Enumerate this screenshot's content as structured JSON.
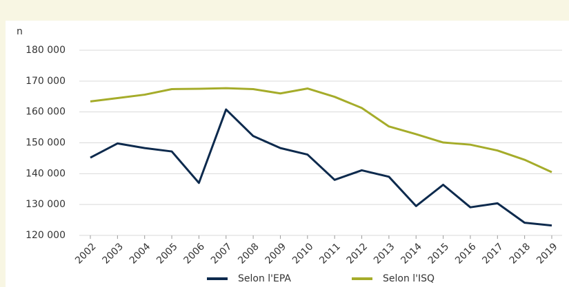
{
  "chart_data": {
    "type": "line",
    "ylabel": "n",
    "categories": [
      "2002",
      "2003",
      "2004",
      "2005",
      "2006",
      "2007",
      "2008",
      "2009",
      "2010",
      "2011",
      "2012",
      "2013",
      "2014",
      "2015",
      "2016",
      "2017",
      "2018",
      "2019"
    ],
    "series": [
      {
        "name": "Selon l'EPA",
        "color": "#0d2a4d",
        "values": [
          145200,
          149800,
          148300,
          147200,
          137000,
          160800,
          152200,
          148300,
          146200,
          138000,
          141100,
          139000,
          129500,
          136400,
          129100,
          130400,
          124100,
          123200
        ]
      },
      {
        "name": "Selon l'ISQ",
        "color": "#a5ac2a",
        "values": [
          163400,
          164500,
          165600,
          167400,
          167500,
          167700,
          167400,
          166000,
          167600,
          164900,
          161300,
          155300,
          152800,
          150100,
          149400,
          147500,
          144500,
          140500
        ]
      }
    ],
    "ylim": [
      120000,
      180000
    ],
    "yticks": [
      {
        "value": 120000,
        "label": "120 000"
      },
      {
        "value": 130000,
        "label": "130 000"
      },
      {
        "value": 140000,
        "label": "140 000"
      },
      {
        "value": 150000,
        "label": "150 000"
      },
      {
        "value": 160000,
        "label": "160 000"
      },
      {
        "value": 170000,
        "label": "170 000"
      },
      {
        "value": 180000,
        "label": "180 000"
      }
    ],
    "grid": true
  }
}
